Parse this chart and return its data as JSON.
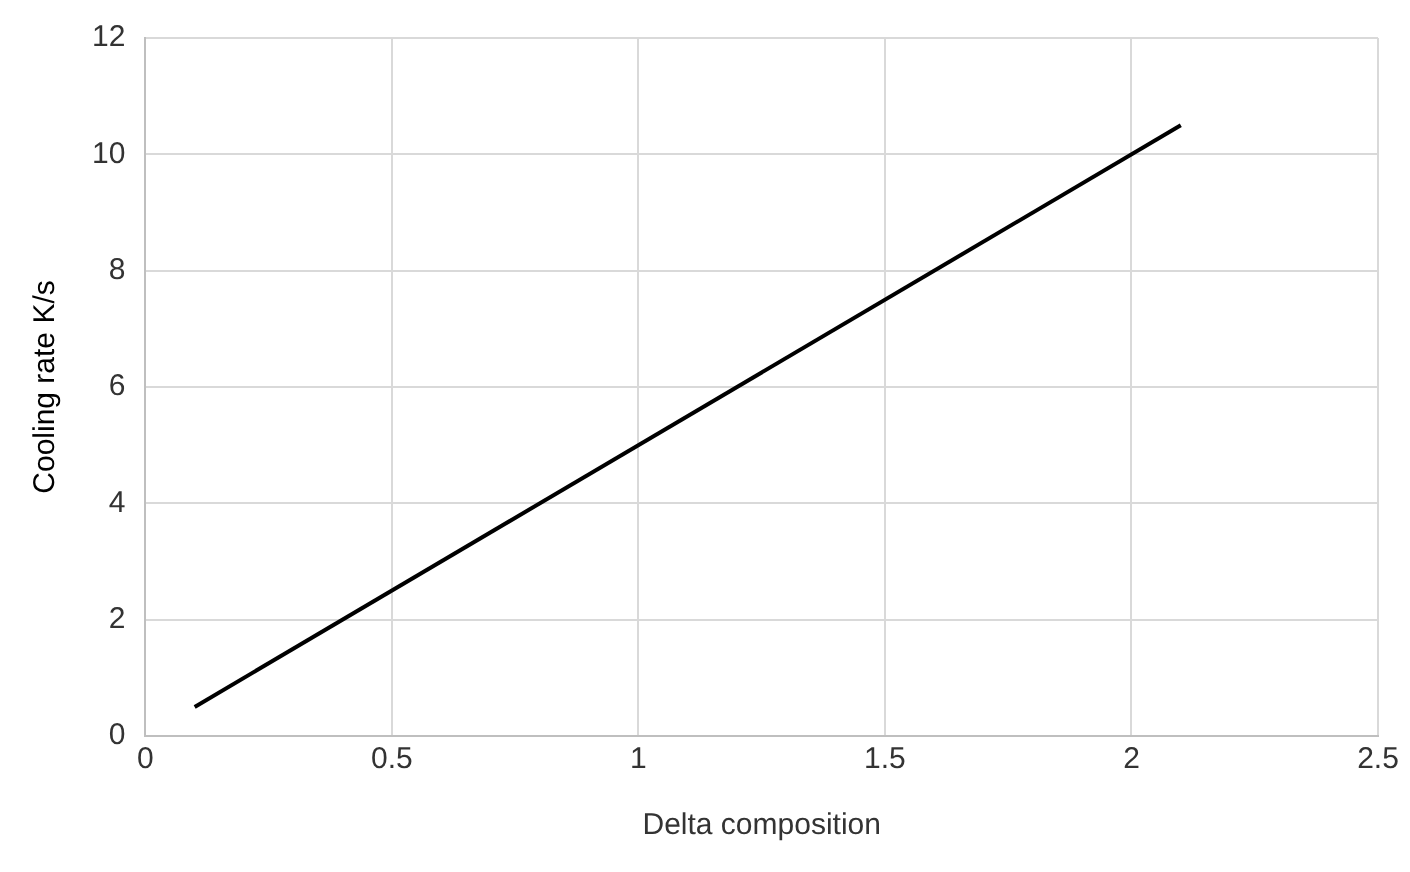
{
  "chart_data": {
    "type": "line",
    "xlabel": "Delta composition",
    "ylabel": "Cooling rate K/s",
    "series": [
      {
        "color": "#000000",
        "x": [
          0.1,
          2.1
        ],
        "values": [
          0.5,
          10.5
        ]
      }
    ],
    "xlim": [
      0,
      2.5
    ],
    "xticks": [
      0,
      0.5,
      1,
      1.5,
      2,
      2.5
    ],
    "ylim": [
      0,
      12
    ],
    "yticks": [
      0,
      2,
      4,
      6,
      8,
      10,
      12
    ],
    "grid": true,
    "marker": "none",
    "line_style": "solid",
    "legend": false
  }
}
